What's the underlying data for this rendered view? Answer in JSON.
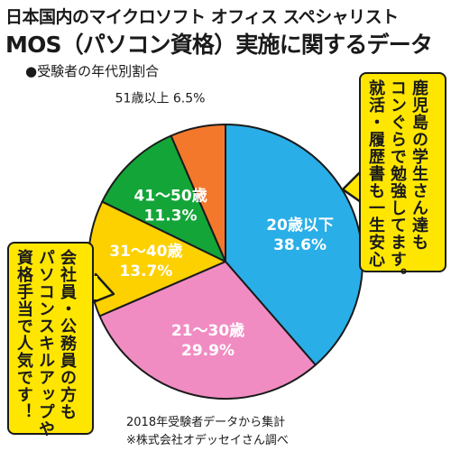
{
  "header": {
    "title_line1": "日本国内のマイクロソフト オフィス スペシャリスト",
    "title_line2": "MOS（パソコン資格）実施に関するデータ",
    "subtitle": "●受験者の年代別割合"
  },
  "chart_data": {
    "type": "pie",
    "title": "受験者の年代別割合",
    "slices": [
      {
        "label": "20歳以下",
        "value": 38.6,
        "display": "38.6%",
        "color": "#29aee8",
        "text_color": "#ffffff"
      },
      {
        "label": "21～30歳",
        "value": 29.9,
        "display": "29.9%",
        "color": "#f08cc2",
        "text_color": "#ffffff"
      },
      {
        "label": "31～40歳",
        "value": 13.7,
        "display": "13.7%",
        "color": "#fdd000",
        "text_color": "#ffffff"
      },
      {
        "label": "41～50歳",
        "value": 11.3,
        "display": "11.3%",
        "color": "#13a538",
        "text_color": "#ffffff"
      },
      {
        "label": "51歳以上",
        "value": 6.5,
        "display": "6.5%",
        "color": "#f3782c",
        "text_color": "#1a1a1a"
      }
    ],
    "start_angle_deg": 0,
    "direction": "clockwise"
  },
  "callouts": {
    "right": "鹿児島の学生さん達も\nコンぐらで勉強してます。\n就活・履歴書も一生安心",
    "left": "会社員・公務員の方も\nパソコンスキルアップや\n資格手当で人気です！"
  },
  "footer": {
    "source": "2018年受験者データから集計",
    "credit": "※株式会社オデッセイさん調べ"
  }
}
